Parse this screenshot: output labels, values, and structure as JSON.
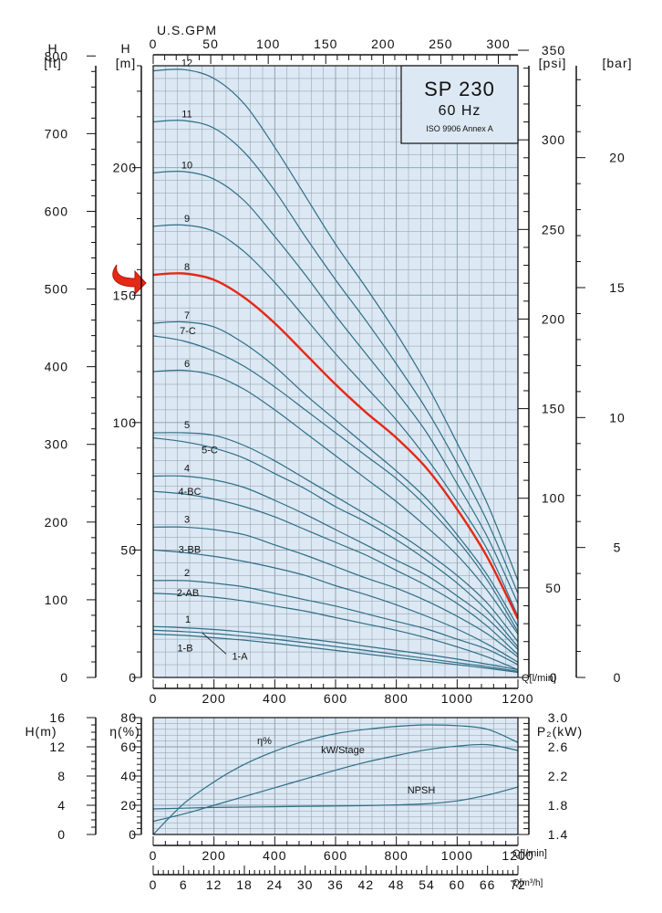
{
  "chart_data": [
    {
      "type": "line",
      "title": "SP 230",
      "subtitle": "60 Hz",
      "standard": "ISO 9906 Annex A",
      "xlabel": "Q[l/min]",
      "x_top_label": "U.S.GPM",
      "ylabel": "H [m]",
      "y_left_outer_label": "H [ft]",
      "y_right_label": "[psi]",
      "y_right_outer_label": "[bar]",
      "xlim": [
        0,
        1200
      ],
      "ylim": [
        0,
        240
      ],
      "x_ticks": [
        "0",
        "200",
        "400",
        "600",
        "800",
        "1000",
        "1200"
      ],
      "x_top_ticks": [
        "0",
        "50",
        "100",
        "150",
        "200",
        "250",
        "300"
      ],
      "y_ticks": [
        "0",
        "50",
        "100",
        "150",
        "200"
      ],
      "y_ft_ticks": [
        "0",
        "100",
        "200",
        "300",
        "400",
        "500",
        "600",
        "700",
        "800"
      ],
      "y_psi_ticks": [
        "0",
        "50",
        "100",
        "150",
        "200",
        "250",
        "300",
        "350"
      ],
      "y_bar_ticks": [
        "0",
        "5",
        "10",
        "15",
        "20"
      ],
      "highlighted": "8",
      "x": [
        0,
        100,
        200,
        300,
        400,
        500,
        600,
        700,
        800,
        900,
        1000,
        1100,
        1200
      ],
      "series": [
        {
          "name": "12",
          "values": [
            238,
            238.5,
            235,
            225,
            208,
            189,
            170,
            153,
            135,
            115,
            92,
            68,
            38
          ]
        },
        {
          "name": "11",
          "values": [
            218,
            218.5,
            215.5,
            206,
            191,
            173,
            156,
            140,
            123,
            105,
            84,
            61,
            33
          ]
        },
        {
          "name": "10",
          "values": [
            198,
            198.5,
            195.5,
            187,
            173,
            158,
            142,
            127,
            112,
            96,
            76,
            55,
            29
          ]
        },
        {
          "name": "9",
          "values": [
            177,
            177.5,
            175,
            167,
            155,
            141,
            127,
            114,
            101,
            86,
            69,
            50,
            24
          ]
        },
        {
          "name": "8",
          "values": [
            158,
            158.5,
            156,
            149,
            139,
            127,
            115,
            104,
            94,
            82,
            66,
            47,
            23
          ]
        },
        {
          "name": "7",
          "values": [
            139,
            139.5,
            137.5,
            131,
            122,
            111,
            101,
            91,
            81,
            70,
            56,
            40,
            20
          ]
        },
        {
          "name": "7-C",
          "values": [
            134,
            132,
            128,
            122,
            114,
            105,
            96,
            87,
            78,
            67,
            54,
            38,
            18
          ]
        },
        {
          "name": "6",
          "values": [
            120,
            120.5,
            118.5,
            113,
            105,
            96,
            87,
            78,
            69,
            59,
            48,
            34,
            17
          ]
        },
        {
          "name": "5",
          "values": [
            96,
            96,
            95,
            91,
            85,
            78,
            71,
            64,
            57,
            49,
            40,
            29,
            14
          ]
        },
        {
          "name": "5-C",
          "values": [
            94,
            92.5,
            90,
            86,
            80,
            74,
            67,
            61,
            54,
            46,
            37,
            26,
            12
          ]
        },
        {
          "name": "4",
          "values": [
            79,
            79,
            77.5,
            74.5,
            69.5,
            64,
            58,
            52,
            46,
            40,
            32,
            23,
            11
          ]
        },
        {
          "name": "4-BC",
          "values": [
            73,
            72,
            70,
            67,
            63,
            58,
            53,
            48,
            42,
            36,
            29,
            20,
            9
          ]
        },
        {
          "name": "3",
          "values": [
            59,
            59,
            58,
            56,
            52,
            48,
            43.5,
            39,
            35,
            30,
            24,
            17,
            8
          ]
        },
        {
          "name": "3-BB",
          "values": [
            50,
            49,
            47.5,
            45.5,
            43,
            40,
            36,
            32.5,
            28.5,
            24,
            19,
            13,
            6
          ]
        },
        {
          "name": "2",
          "values": [
            38,
            38,
            37,
            35.5,
            33,
            30.5,
            28,
            25,
            22,
            19,
            15,
            11,
            5
          ]
        },
        {
          "name": "2-AB",
          "values": [
            33,
            32.5,
            31.5,
            30,
            28,
            26,
            23.5,
            21,
            18.5,
            15.5,
            12,
            8,
            3
          ]
        },
        {
          "name": "1",
          "values": [
            20,
            19.5,
            18.8,
            17.8,
            16.6,
            15.2,
            13.8,
            12.2,
            10.6,
            9,
            7.2,
            5.2,
            3
          ]
        },
        {
          "name": "1-A",
          "values": [
            18.5,
            18,
            17.2,
            16.2,
            15,
            13.6,
            12.1,
            10.6,
            9,
            7.4,
            5.8,
            4.2,
            2.4
          ]
        },
        {
          "name": "1-B",
          "values": [
            17,
            16.5,
            15.6,
            14.6,
            13.4,
            12,
            10.6,
            9.2,
            7.8,
            6.4,
            5,
            3.6,
            2
          ]
        }
      ]
    },
    {
      "type": "line",
      "xlabel": "Q[l/min]",
      "x2label": "Q[m³/h]",
      "y_left_outer_label": "H(m)",
      "ylabel": "η(%)",
      "y_right_label": "P₂(kW)",
      "xlim": [
        0,
        1200
      ],
      "ylim": [
        0,
        80
      ],
      "x_ticks": [
        "0",
        "200",
        "400",
        "600",
        "800",
        "1000",
        "1200"
      ],
      "x2_ticks": [
        "0",
        "6",
        "12",
        "18",
        "24",
        "30",
        "36",
        "42",
        "48",
        "54",
        "60",
        "66",
        "72"
      ],
      "y_ticks": [
        "0",
        "20",
        "40",
        "60",
        "80"
      ],
      "y_h_ticks": [
        "0",
        "4",
        "8",
        "12",
        "16"
      ],
      "y_kw_ticks": [
        "1.4",
        "1.8",
        "2.2",
        "2.6",
        "3.0"
      ],
      "x": [
        0,
        100,
        200,
        300,
        400,
        500,
        600,
        700,
        800,
        900,
        1000,
        1100,
        1200
      ],
      "series": [
        {
          "name": "η%",
          "values": [
            0,
            21,
            36,
            48,
            57,
            64,
            69,
            72,
            74,
            75,
            74.5,
            72,
            63
          ]
        },
        {
          "name": "kW/Stage",
          "values": [
            1.58,
            1.68,
            1.8,
            1.92,
            2.04,
            2.16,
            2.28,
            2.39,
            2.48,
            2.56,
            2.61,
            2.63,
            2.55
          ]
        },
        {
          "name": "NPSH",
          "values": [
            3.5,
            3.6,
            3.7,
            3.75,
            3.8,
            3.85,
            3.9,
            3.95,
            4.05,
            4.2,
            4.6,
            5.4,
            6.5
          ]
        }
      ]
    }
  ],
  "colors": {
    "plot_bg": "#dce8f3",
    "grid": "#8a9dad",
    "curve": "#2e6e86",
    "highlight": "#e62816",
    "axis": "#111111"
  }
}
